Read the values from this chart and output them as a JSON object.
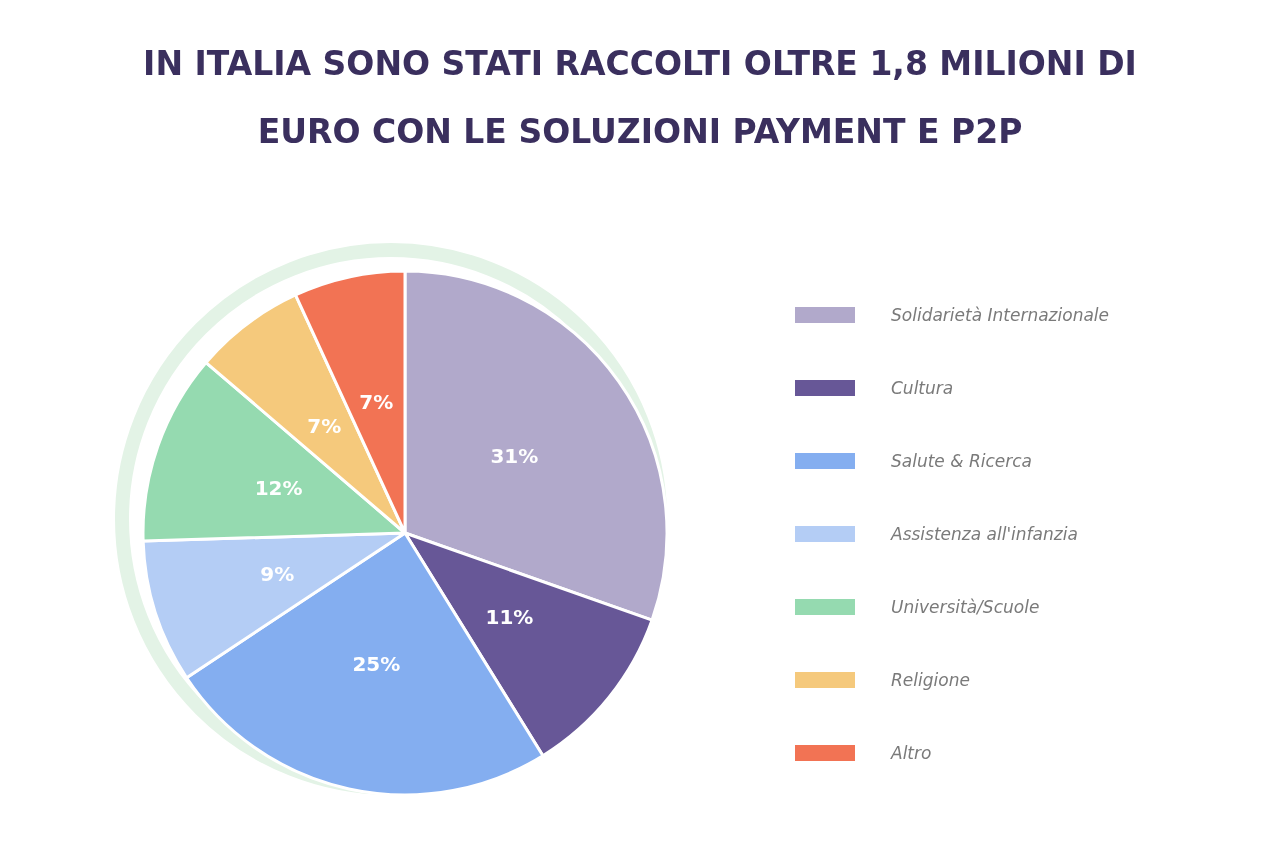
{
  "chart_data": {
    "type": "pie",
    "title": "IN ITALIA SONO STATI RACCOLTI OLTRE 1,8 MILIONI DI EURO CON LE SOLUZIONI PAYMENT E P2P",
    "categories": [
      "Solidarietà Internazionale",
      "Cultura",
      "Salute & Ricerca",
      "Assistenza all'infanzia",
      "Università/Scuole",
      "Religione",
      "Altro"
    ],
    "values": [
      31,
      11,
      25,
      9,
      12,
      7,
      7
    ],
    "value_labels": [
      "31%",
      "11%",
      "25%",
      "9%",
      "12%",
      "7%",
      "7%"
    ],
    "colors": [
      "#b1a9cb",
      "#675797",
      "#84aef0",
      "#b4cdf5",
      "#95dab0",
      "#f5c97c",
      "#f27354"
    ],
    "legend": "right"
  }
}
